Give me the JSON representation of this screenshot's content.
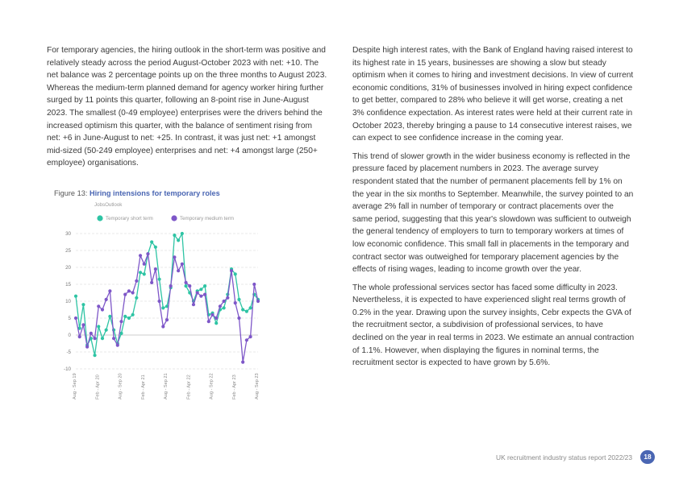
{
  "left_column": {
    "paragraphs": [
      "For temporary agencies, the hiring outlook in the short-term was positive and relatively steady across the period August-October 2023 with net: +10. The net balance was 2 percentage points up on the three months to August 2023. Whereas the medium-term planned demand for agency worker hiring further surged by 11 points this quarter, following an 8-point rise in June-August 2023. The smallest (0-49 employee) enterprises were the drivers behind the increased optimism this quarter, with the balance of sentiment rising from net: +6 in June-August to net: +25. In contrast, it was just net: +1 amongst mid-sized (50-249 employee) enterprises and net: +4 amongst large (250+ employee) organisations."
    ]
  },
  "figure": {
    "label": "Figure 13:",
    "title": "Hiring intensions for temporary roles",
    "source": "JobsOutlook"
  },
  "chart_data": {
    "type": "line",
    "title": "Hiring intensions for temporary roles",
    "subtitle": "JobsOutlook",
    "ylim": [
      -10,
      30
    ],
    "yticks": [
      -10,
      -5,
      0,
      5,
      10,
      15,
      20,
      25,
      30
    ],
    "grid": true,
    "legend_placement": "top",
    "x_tick_labels": [
      "Aug - Sep 19",
      "Feb - Apr 20",
      "Aug - Sep 20",
      "Feb - Apr 21",
      "Aug - Sep 21",
      "Feb - Apr 22",
      "Aug - Sep 22",
      "Feb - Apr 23",
      "Aug - Sep 23"
    ],
    "series": [
      {
        "name": "Temporary short term",
        "color": "#2ec4a4",
        "values": [
          11.5,
          2,
          9,
          -3,
          -1,
          -6,
          2.5,
          -1,
          1.5,
          5.5,
          1.5,
          -2.5,
          0.5,
          5.5,
          5,
          6,
          11,
          18.5,
          18,
          24,
          27.5,
          26,
          16.5,
          8,
          8.5,
          14,
          29.5,
          28,
          30,
          14.5,
          12.5,
          10,
          13,
          13.5,
          14.5,
          6,
          6.5,
          3.5,
          7.5,
          8,
          12,
          19.5,
          18,
          10.5,
          7.5,
          7,
          8,
          12,
          10.5
        ]
      },
      {
        "name": "Temporary medium term",
        "color": "#7e57c8",
        "values": [
          5,
          -0.5,
          3,
          -3.5,
          0.5,
          -1,
          8.5,
          7.5,
          10.5,
          13,
          -1,
          -3,
          4,
          12,
          13,
          12.5,
          16,
          23.5,
          21,
          24,
          15.5,
          19.5,
          10,
          2.5,
          4.5,
          14.5,
          23,
          19,
          21,
          15.5,
          14.5,
          9,
          12.5,
          11.5,
          12,
          4,
          6,
          5,
          8.5,
          10,
          11,
          19,
          9.5,
          5,
          -8,
          -1.5,
          -0.5,
          15,
          10
        ]
      }
    ]
  },
  "right_column": {
    "paragraphs": [
      "Despite high interest rates, with the Bank of England having raised interest to its highest rate in 15 years, businesses are showing a slow but steady optimism when it comes to hiring and investment decisions. In view of current economic conditions, 31% of businesses involved in hiring expect confidence to get better, compared to 28% who believe it will get worse, creating a net 3% confidence expectation. As interest rates were held at their current rate in October 2023, thereby bringing a pause to 14 consecutive interest raises, we can expect to see confidence increase in the coming year.",
      "This trend of slower growth in the wider business economy is reflected in the pressure faced by placement numbers in 2023. The average survey respondent stated that the number of permanent placements fell by 1% on the year in the six months to September. Meanwhile, the survey pointed to an average 2% fall in number of temporary or contract placements over the same period, suggesting that this year's slowdown was sufficient to outweigh the general tendency of employers to turn to temporary workers at times of low economic confidence. This small fall in placements in the temporary and contract sector was outweighed for temporary placement agencies by the effects of rising wages, leading to income growth over the year.",
      "The whole professional services sector has faced some difficulty in 2023. Nevertheless, it is expected to have experienced slight real terms growth of 0.2% in the year. Drawing upon the survey insights, Cebr expects the GVA of the recruitment sector, a subdivision of professional services, to have declined on the year in real terms in 2023. We estimate an annual contraction of 1.1%. However, when displaying the figures in nominal terms, the recruitment sector is expected to have grown by 5.6%."
    ]
  },
  "footer": {
    "report_title": "UK recruitment industry status report 2022/23",
    "page_number": "18"
  }
}
